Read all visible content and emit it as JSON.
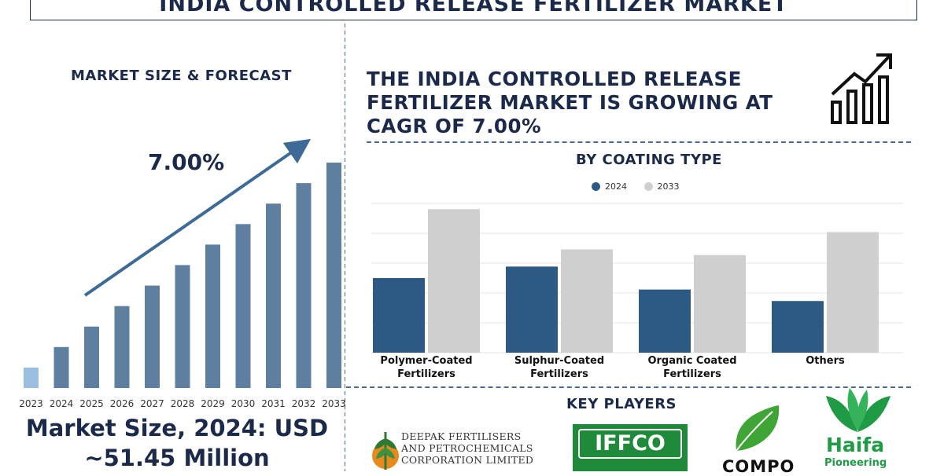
{
  "title": "INDIA CONTROLLED RELEASE FERTILIZER MARKET",
  "market_size_section": {
    "heading": "MARKET SIZE & FORECAST",
    "cagr_label": "7.00%",
    "market_size_line1": "Market Size, 2024: USD",
    "market_size_line2": "~51.45 Million"
  },
  "headline": "THE INDIA CONTROLLED RELEASE FERTILIZER MARKET IS GROWING AT CAGR OF 7.00%",
  "segment_section": {
    "heading": "BY COATING TYPE"
  },
  "key_players": {
    "heading": "KEY PLAYERS",
    "logos": [
      {
        "name": "Deepak",
        "lines": [
          "DEEPAK FERTILISERS",
          "AND PETROCHEMICALS",
          "CORPORATION LIMITED"
        ]
      },
      {
        "name": "IFFCO",
        "text": "IFFCO"
      },
      {
        "name": "COMPO",
        "text": "COMPO"
      },
      {
        "name": "Haifa",
        "text": "Haifa",
        "sub": "Pioneering"
      }
    ]
  },
  "colors": {
    "navy": "#1b2a4a",
    "bar_dark": "#2c5a85",
    "bar_light": "#cfcfcf",
    "forecast_bar": "#5f7fa0",
    "first_bar": "#9bbfe0",
    "divider": "#4a6b92"
  },
  "icons": {
    "growth": "bar-chart-up-arrow-icon"
  },
  "chart_data": [
    {
      "type": "bar",
      "title": "MARKET SIZE & FORECAST",
      "categories": [
        "2023",
        "2024",
        "2025",
        "2026",
        "2027",
        "2028",
        "2029",
        "2030",
        "2031",
        "2032",
        "2033"
      ],
      "values": [
        1,
        2,
        3,
        4,
        5,
        6,
        7,
        8,
        9,
        10,
        11
      ],
      "annotation": "7.00%",
      "ylim": [
        0,
        11.5
      ],
      "grid": false
    },
    {
      "type": "bar",
      "title": "BY COATING TYPE",
      "categories": [
        "Polymer-Coated Fertilizers",
        "Sulphur-Coated Fertilizers",
        "Organic Coated Fertilizers",
        "Others"
      ],
      "series": [
        {
          "name": "2024",
          "values": [
            2.6,
            3.0,
            2.2,
            1.8
          ]
        },
        {
          "name": "2033",
          "values": [
            5.0,
            3.6,
            3.4,
            4.2
          ]
        }
      ],
      "ylim": [
        0,
        5.2
      ],
      "grid": true,
      "legend": "top-center"
    }
  ]
}
